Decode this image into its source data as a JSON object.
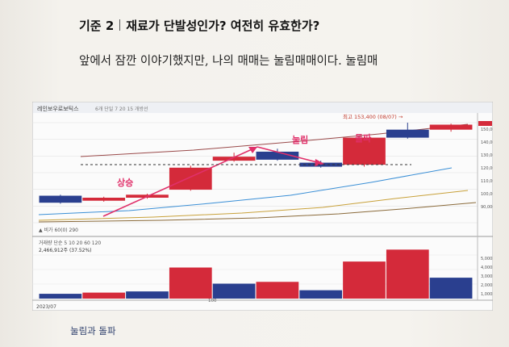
{
  "heading": {
    "number": "기준 2",
    "title": "재료가 단발성인가? 여전히 유효한가?"
  },
  "body_text": "앞에서 잠깐 이야기했지만, 나의 매매는 눌림매매이다. 눌림매",
  "caption": "눌림과 돌파",
  "chart": {
    "stock_name": "레인보우로보틱스",
    "price_header": "6개 단일 7 20 15 개방선",
    "high_label": "최고 153,400 (08/07) →",
    "ma_label": "▲ 비가 60(0) 290",
    "volume_header": "거래량 단순 5 10 20 60 120",
    "volume_value": "2,466,912주 (37.52%)",
    "date_label": "2023/07",
    "mid_date_label": "100",
    "annotations": {
      "rise": "상승",
      "pullback": "눌림",
      "breakout": "돌파"
    },
    "colors": {
      "up": "#d42a3a",
      "down": "#2a3f8f",
      "annotation": "#e0306a"
    }
  },
  "chart_data": {
    "type": "candlestick",
    "note_values": "relative price levels 0-100 estimated from figure",
    "candles": [
      {
        "dir": "down",
        "open": 27,
        "close": 20,
        "high": 28,
        "low": 19
      },
      {
        "dir": "up",
        "open": 22,
        "close": 25,
        "high": 26,
        "low": 21
      },
      {
        "dir": "up",
        "open": 25,
        "close": 28,
        "high": 29,
        "low": 24
      },
      {
        "dir": "up",
        "open": 33,
        "close": 55,
        "high": 57,
        "low": 32
      },
      {
        "dir": "up",
        "open": 62,
        "close": 66,
        "high": 70,
        "low": 61
      },
      {
        "dir": "down",
        "open": 71,
        "close": 63,
        "high": 74,
        "low": 62
      },
      {
        "dir": "down",
        "open": 60,
        "close": 56,
        "high": 62,
        "low": 55
      },
      {
        "dir": "up",
        "open": 58,
        "close": 85,
        "high": 86,
        "low": 56
      },
      {
        "dir": "down",
        "open": 93,
        "close": 85,
        "high": 100,
        "low": 84
      },
      {
        "dir": "up",
        "open": 93,
        "close": 98,
        "high": 99,
        "low": 91
      }
    ],
    "volume": [
      {
        "dir": "down",
        "value": 8
      },
      {
        "dir": "up",
        "value": 10
      },
      {
        "dir": "down",
        "value": 12
      },
      {
        "dir": "up",
        "value": 52
      },
      {
        "dir": "down",
        "value": 25
      },
      {
        "dir": "up",
        "value": 28
      },
      {
        "dir": "down",
        "value": 14
      },
      {
        "dir": "up",
        "value": 62
      },
      {
        "dir": "up",
        "value": 82
      },
      {
        "dir": "down",
        "value": 35
      }
    ],
    "right_axis_ticks": [
      "150,000",
      "140,000",
      "130,000",
      "120,000",
      "110,000",
      "100,000",
      "90,000"
    ],
    "volume_axis_ticks": [
      "5,000K",
      "4,000K",
      "3,000K",
      "2,000K",
      "1,000K"
    ]
  }
}
